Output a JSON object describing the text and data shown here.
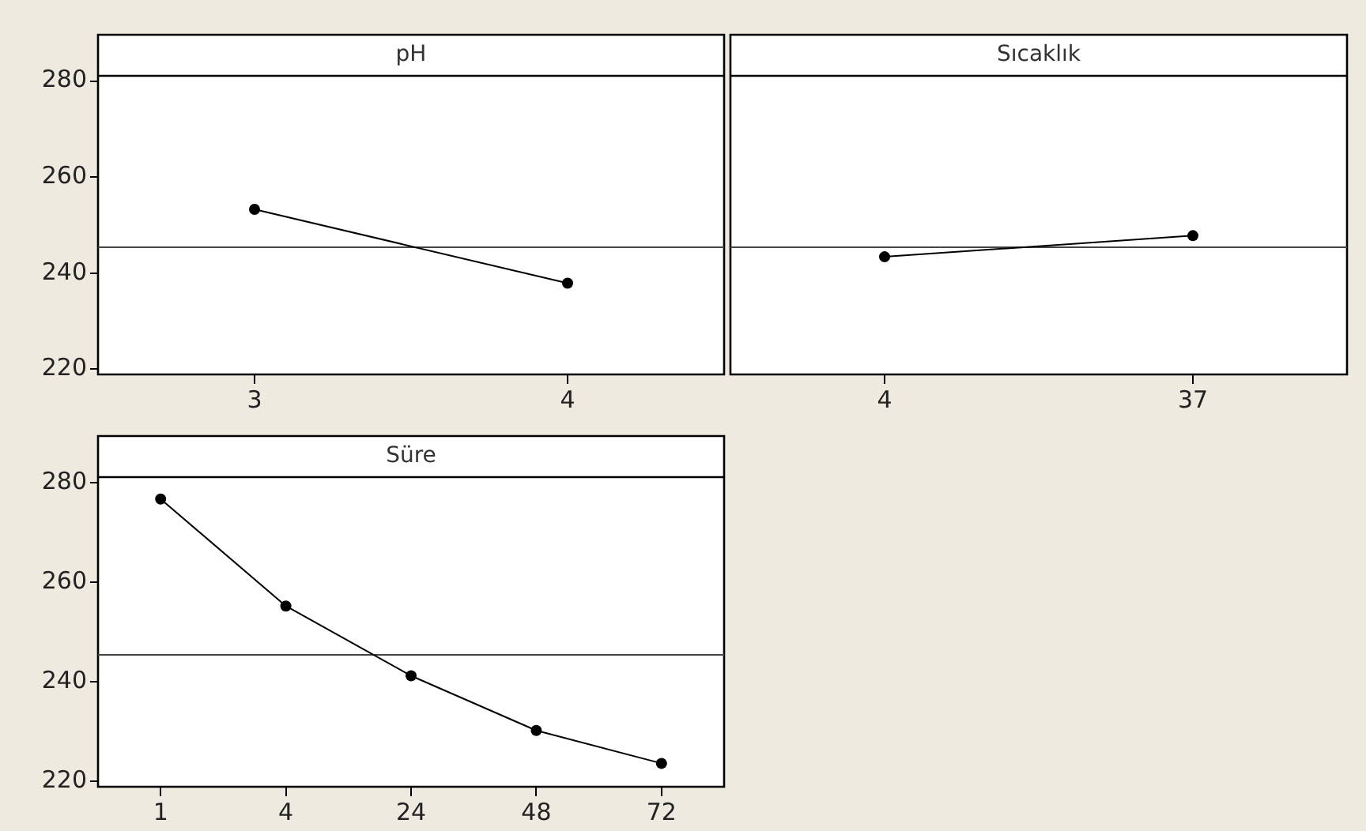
{
  "chart_data": [
    {
      "type": "line",
      "title": "pH",
      "categories": [
        "3",
        "4"
      ],
      "series": [
        {
          "color": "#000000",
          "values": [
            253.3,
            237.9
          ]
        }
      ],
      "ylim": [
        218.9,
        281.1
      ],
      "yticks": [
        220,
        240,
        260,
        280
      ],
      "ref_lines": [
        {
          "axis": "y",
          "value": 245.4,
          "color": "#444444"
        }
      ],
      "marker": "circle",
      "grid": false,
      "legend": false
    },
    {
      "type": "line",
      "title": "Sıcaklık",
      "categories": [
        "4",
        "37"
      ],
      "series": [
        {
          "color": "#000000",
          "values": [
            243.4,
            247.8
          ]
        }
      ],
      "ylim": [
        218.9,
        281.1
      ],
      "yticks": [
        220,
        240,
        260,
        280
      ],
      "tick_labels": "x",
      "ref_lines": [
        {
          "axis": "y",
          "value": 245.4,
          "color": "#444444"
        }
      ],
      "marker": "circle",
      "grid": false,
      "legend": false
    },
    {
      "type": "line",
      "title": "Süre",
      "categories": [
        "1",
        "4",
        "24",
        "48",
        "72"
      ],
      "series": [
        {
          "color": "#000000",
          "values": [
            276.7,
            255.2,
            241.2,
            230.2,
            223.6
          ]
        }
      ],
      "ylim": [
        218.9,
        281.1
      ],
      "yticks": [
        220,
        240,
        260,
        280
      ],
      "ref_lines": [
        {
          "axis": "y",
          "value": 245.4,
          "color": "#444444"
        }
      ],
      "marker": "circle",
      "grid": false,
      "legend": false
    }
  ]
}
